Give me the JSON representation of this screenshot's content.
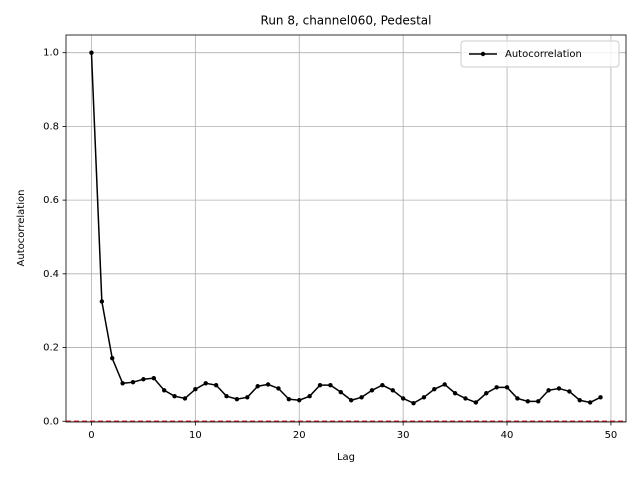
{
  "chart_data": {
    "type": "line",
    "title": "Run 8, channel060, Pedestal",
    "xlabel": "Lag",
    "ylabel": "Autocorrelation",
    "x": [
      0,
      1,
      2,
      3,
      4,
      5,
      6,
      7,
      8,
      9,
      10,
      11,
      12,
      13,
      14,
      15,
      16,
      17,
      18,
      19,
      20,
      21,
      22,
      23,
      24,
      25,
      26,
      27,
      28,
      29,
      30,
      31,
      32,
      33,
      34,
      35,
      36,
      37,
      38,
      39,
      40,
      41,
      42,
      43,
      44,
      45,
      46,
      47,
      48,
      49
    ],
    "series": [
      {
        "name": "Autocorrelation",
        "color": "#000000",
        "values": [
          1.0,
          0.325,
          0.171,
          0.103,
          0.106,
          0.114,
          0.117,
          0.084,
          0.068,
          0.062,
          0.087,
          0.103,
          0.098,
          0.068,
          0.06,
          0.065,
          0.095,
          0.1,
          0.089,
          0.06,
          0.057,
          0.068,
          0.098,
          0.098,
          0.079,
          0.057,
          0.065,
          0.084,
          0.098,
          0.084,
          0.062,
          0.049,
          0.065,
          0.087,
          0.1,
          0.076,
          0.062,
          0.051,
          0.076,
          0.092,
          0.092,
          0.062,
          0.054,
          0.054,
          0.084,
          0.089,
          0.081,
          0.057,
          0.051,
          0.065
        ]
      }
    ],
    "reference_line": {
      "value": 0,
      "color": "#d62728"
    },
    "xlim": [
      -2.45,
      51.45
    ],
    "xticks": [
      0,
      10,
      20,
      30,
      40,
      50
    ],
    "ylim": [
      -0.002,
      1.048
    ],
    "yticks": [
      {
        "value": 0,
        "label": "0.0"
      },
      0.2,
      0.4,
      0.6,
      0.8,
      {
        "value": 1,
        "label": "1.0"
      }
    ],
    "grid": true,
    "legend": "upper right"
  }
}
